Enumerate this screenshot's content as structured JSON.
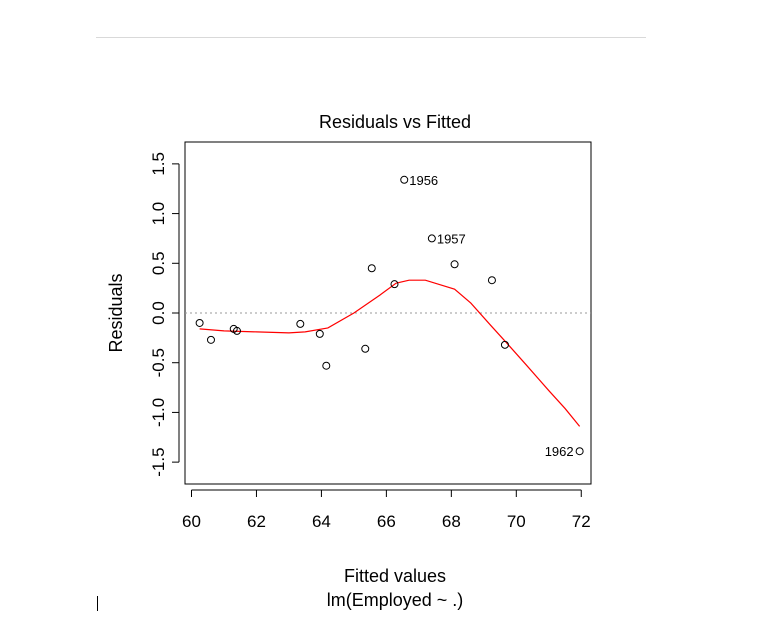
{
  "chart_data": {
    "type": "scatter",
    "title": "Residuals vs Fitted",
    "xlabel": "Fitted values",
    "xlabel_sub": "lm(Employed ~ .)",
    "ylabel": "Residuals",
    "xlim": [
      59.8,
      72.3
    ],
    "ylim": [
      -1.72,
      1.72
    ],
    "x_ticks": [
      60,
      62,
      64,
      66,
      68,
      70,
      72
    ],
    "x_tick_labels": [
      "60",
      "62",
      "64",
      "66",
      "68",
      "70",
      "72"
    ],
    "y_ticks": [
      -1.5,
      -1.0,
      -0.5,
      0.0,
      0.5,
      1.0,
      1.5
    ],
    "y_tick_labels": [
      "-1.5",
      "-1.0",
      "-0.5",
      "0.0",
      "0.5",
      "1.0",
      "1.5"
    ],
    "reference_line_y": 0,
    "points": [
      {
        "x": 60.25,
        "y": -0.1,
        "label": ""
      },
      {
        "x": 60.6,
        "y": -0.27,
        "label": ""
      },
      {
        "x": 61.3,
        "y": -0.16,
        "label": ""
      },
      {
        "x": 61.4,
        "y": -0.18,
        "label": ""
      },
      {
        "x": 63.35,
        "y": -0.11,
        "label": ""
      },
      {
        "x": 63.95,
        "y": -0.21,
        "label": ""
      },
      {
        "x": 64.15,
        "y": -0.53,
        "label": ""
      },
      {
        "x": 65.35,
        "y": -0.36,
        "label": ""
      },
      {
        "x": 65.55,
        "y": 0.45,
        "label": ""
      },
      {
        "x": 66.25,
        "y": 0.29,
        "label": ""
      },
      {
        "x": 66.55,
        "y": 1.34,
        "label": "1956"
      },
      {
        "x": 67.4,
        "y": 0.75,
        "label": "1957"
      },
      {
        "x": 68.1,
        "y": 0.49,
        "label": ""
      },
      {
        "x": 69.25,
        "y": 0.33,
        "label": ""
      },
      {
        "x": 69.65,
        "y": -0.32,
        "label": ""
      },
      {
        "x": 71.95,
        "y": -1.39,
        "label": "1962"
      }
    ],
    "smooth_line": {
      "color": "#ff0000",
      "x": [
        60.25,
        61.0,
        62.0,
        63.0,
        63.5,
        64.2,
        65.0,
        65.8,
        66.3,
        66.7,
        67.2,
        67.6,
        68.1,
        68.6,
        69.2,
        69.7,
        70.3,
        71.0,
        71.5,
        71.95
      ],
      "y": [
        -0.16,
        -0.18,
        -0.19,
        -0.2,
        -0.19,
        -0.15,
        0.0,
        0.18,
        0.3,
        0.33,
        0.33,
        0.29,
        0.24,
        0.1,
        -0.12,
        -0.3,
        -0.52,
        -0.78,
        -0.96,
        -1.14
      ]
    },
    "reference_line_color": "#999999",
    "grid": false
  }
}
